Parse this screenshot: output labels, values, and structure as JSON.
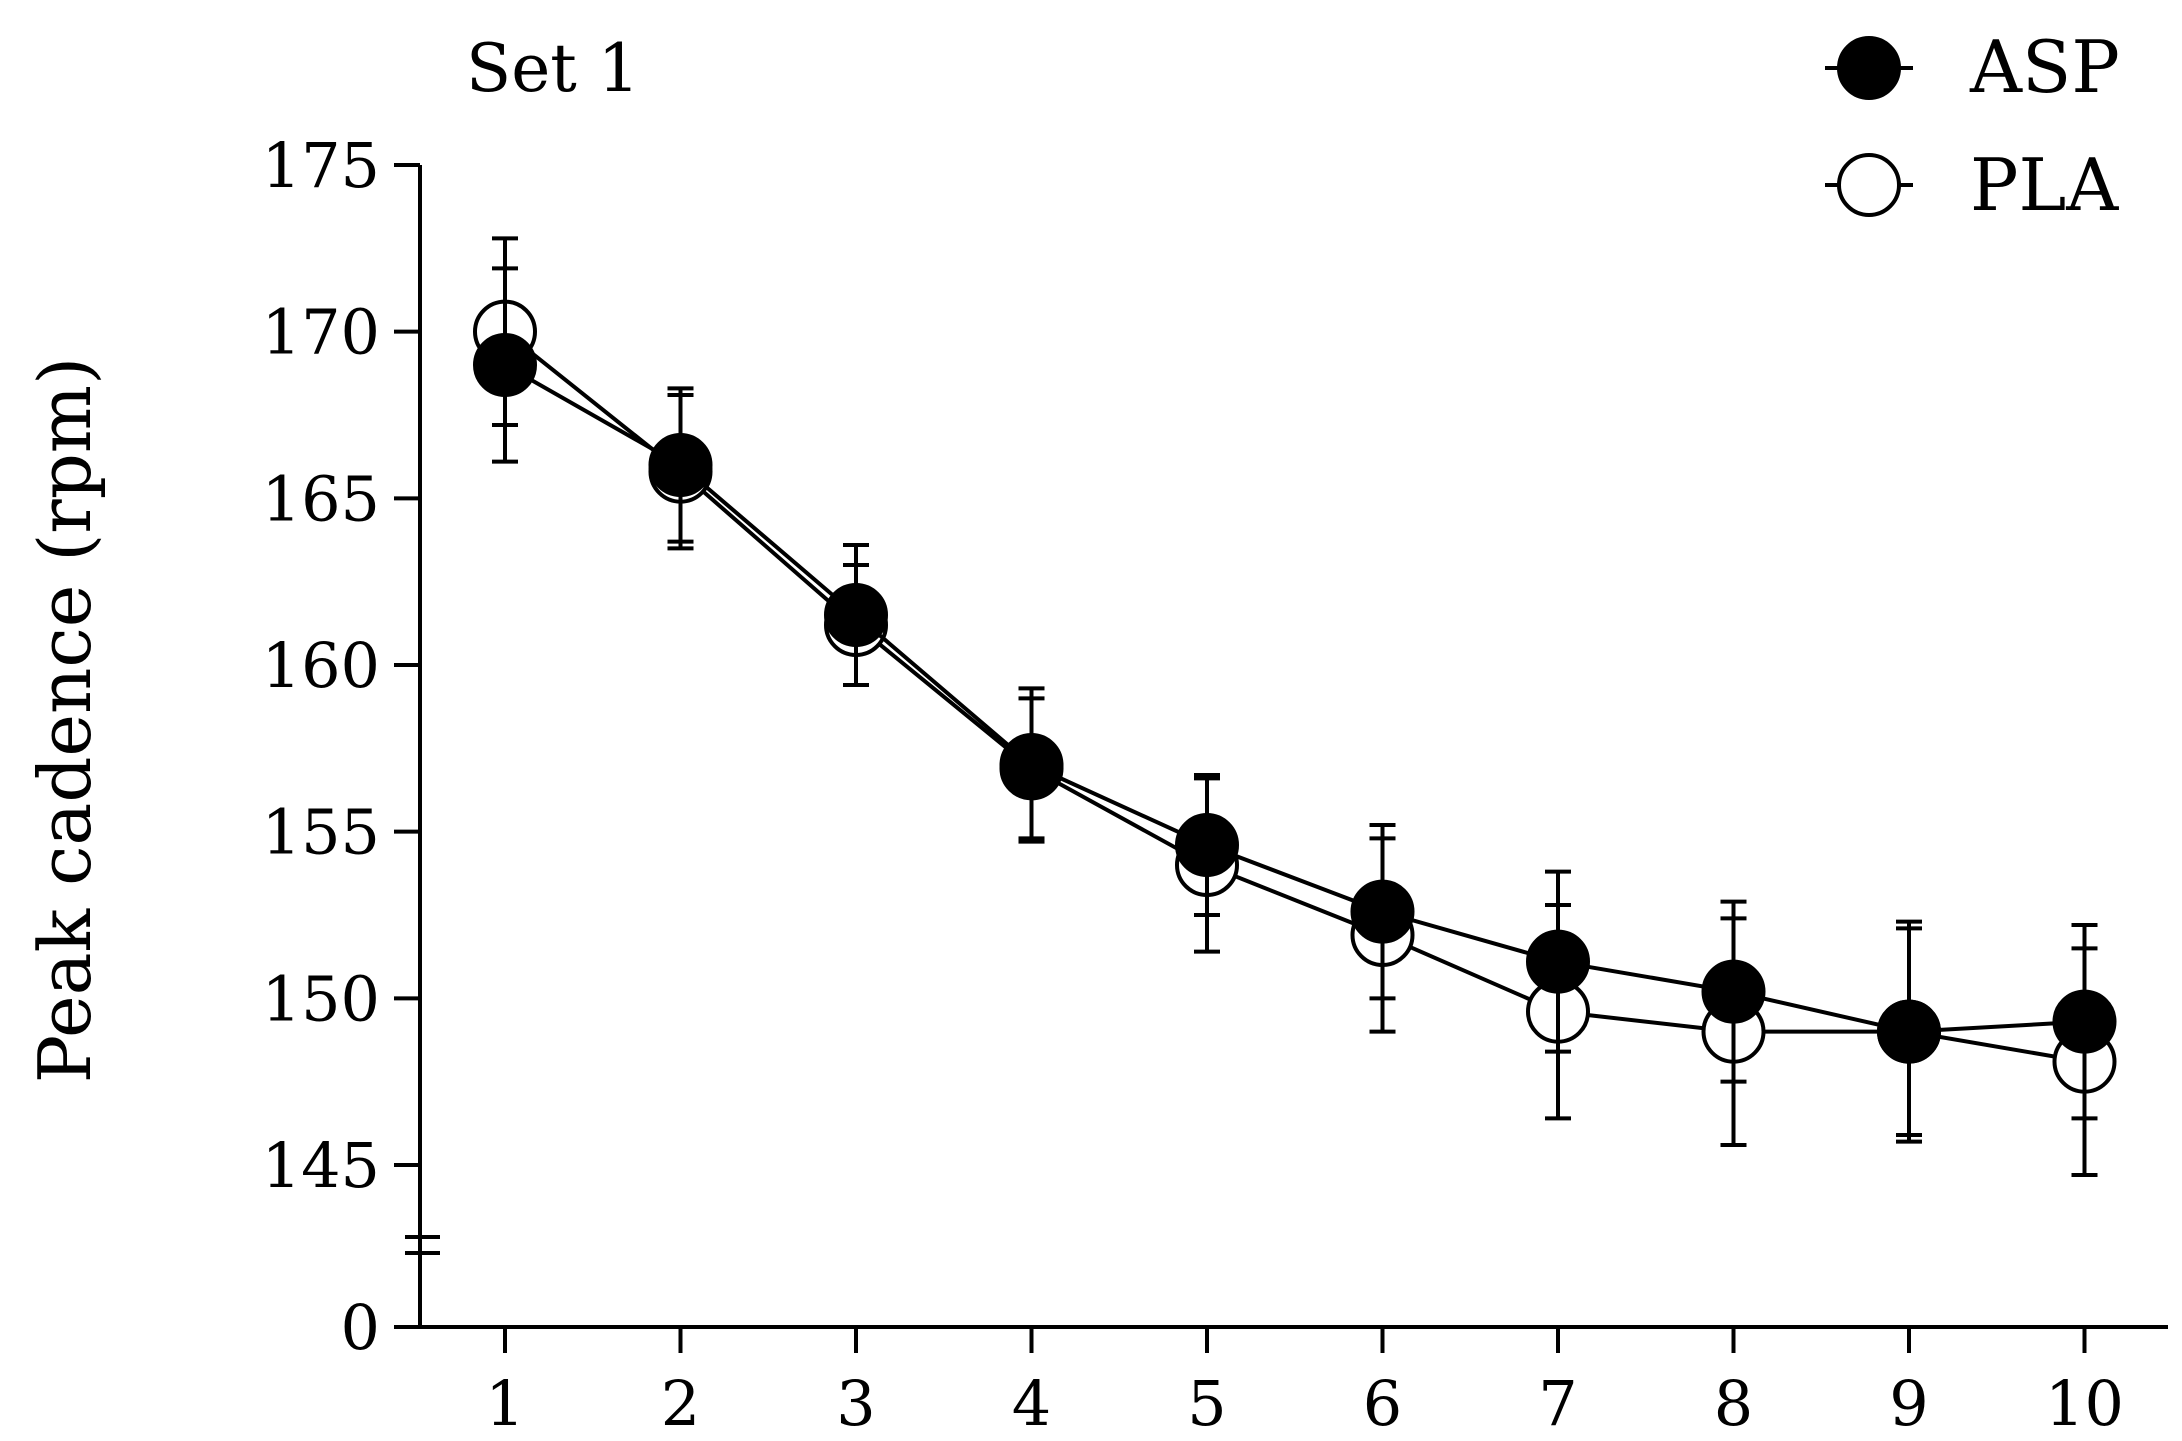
{
  "chart_data": {
    "type": "line",
    "title": "Set 1",
    "ylabel": "Peak cadence (rpm)",
    "xlabel": "",
    "x": [
      1,
      2,
      3,
      4,
      5,
      6,
      7,
      8,
      9,
      10
    ],
    "x_tick_labels": [
      "1",
      "2",
      "3",
      "4",
      "5",
      "6",
      "7",
      "8",
      "9",
      "10"
    ],
    "y_tick_labels": [
      "0",
      "145",
      "150",
      "155",
      "160",
      "165",
      "170",
      "175"
    ],
    "y_ticks": [
      145,
      150,
      155,
      160,
      165,
      170,
      175
    ],
    "ylim": [
      145,
      175
    ],
    "axis_break": true,
    "legend_position": "top-right",
    "series": [
      {
        "name": "ASP",
        "marker": "filled-circle",
        "color": "#000000",
        "values": [
          169.0,
          166.0,
          161.5,
          157.0,
          154.6,
          152.6,
          151.1,
          150.2,
          149.0,
          149.3
        ],
        "error": [
          2.9,
          2.3,
          2.1,
          2.3,
          2.1,
          2.6,
          2.7,
          2.7,
          3.3,
          2.9
        ]
      },
      {
        "name": "PLA",
        "marker": "open-circle",
        "color": "#000000",
        "values": [
          170.0,
          165.8,
          161.2,
          156.9,
          154.0,
          151.9,
          149.6,
          149.0,
          149.0,
          148.1
        ],
        "error": [
          2.8,
          2.3,
          1.8,
          2.1,
          2.6,
          2.9,
          3.2,
          3.4,
          3.1,
          3.4
        ]
      }
    ]
  }
}
